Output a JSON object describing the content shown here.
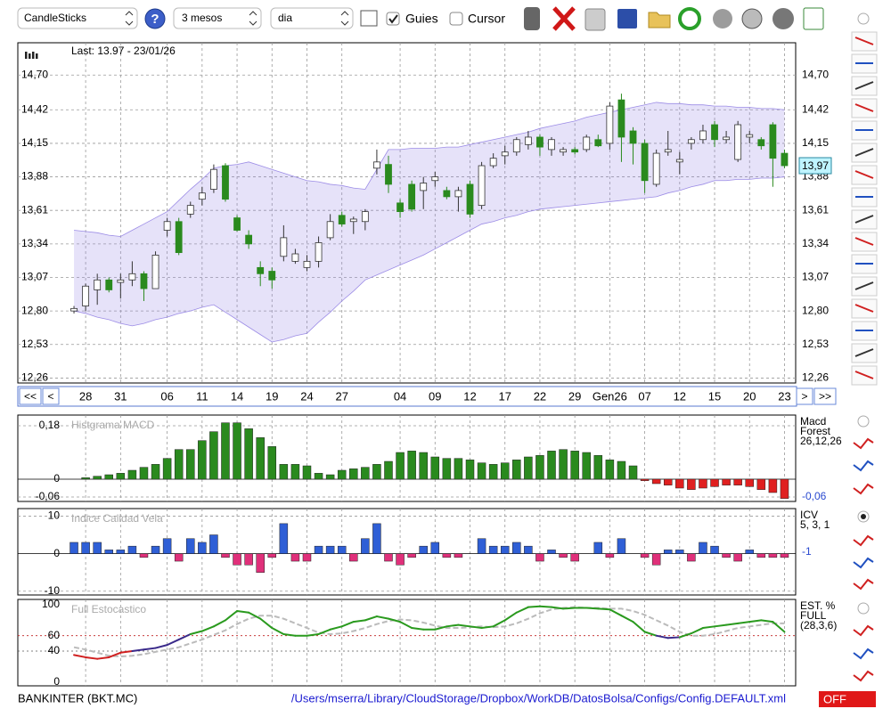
{
  "toolbar": {
    "chart_type": "CandleSticks",
    "period": "3 mesos",
    "interval": "dia",
    "guides": "Guies",
    "cursor": "Cursor",
    "guides_checked": true,
    "cursor_checked": false
  },
  "navigation": {
    "first": "<<",
    "prev": "<",
    "next": ">",
    "last": ">>"
  },
  "status": {
    "symbol": "BANKINTER (BKT.MC)",
    "config_path": "/Users/mserra/Library/CloudStorage/Dropbox/WorkDB/DatosBolsa/Configs/Config.DEFAULT.xml",
    "mode": "OFF"
  },
  "chart_data": [
    {
      "type": "candlestick",
      "annotation": "Last: 13.97 - 23/01/26",
      "last_value": 13.97,
      "last_value_label": "13,97",
      "up_color": "#ffffff",
      "down_color": "#2a8a1e",
      "band_color": "#9c8ce6",
      "categories": [
        null,
        "28",
        null,
        null,
        "31",
        null,
        null,
        null,
        "06",
        null,
        null,
        "11",
        null,
        null,
        "14",
        null,
        null,
        "19",
        null,
        null,
        "24",
        null,
        null,
        "27",
        null,
        null,
        null,
        null,
        "04",
        null,
        null,
        "09",
        null,
        null,
        "12",
        null,
        null,
        "17",
        null,
        null,
        "22",
        null,
        null,
        "29",
        null,
        null,
        "Gen26",
        null,
        null,
        "07",
        null,
        null,
        "12",
        null,
        null,
        "15",
        null,
        null,
        "20",
        null,
        null,
        "23"
      ],
      "open": [
        12.8,
        12.84,
        12.97,
        13.05,
        13.03,
        13.05,
        13.1,
        12.98,
        13.45,
        13.52,
        13.58,
        13.7,
        13.78,
        13.97,
        13.55,
        13.41,
        13.15,
        13.12,
        13.24,
        13.2,
        13.15,
        13.2,
        13.39,
        13.57,
        13.52,
        13.52,
        13.95,
        13.98,
        13.67,
        13.82,
        13.77,
        13.85,
        13.77,
        13.72,
        13.82,
        13.65,
        13.97,
        14.05,
        14.08,
        14.14,
        14.2,
        14.1,
        14.08,
        14.1,
        14.1,
        14.18,
        14.15,
        14.5,
        14.25,
        14.15,
        13.82,
        14.08,
        14.0,
        14.15,
        14.18,
        14.3,
        14.18,
        14.02,
        14.2,
        14.18,
        14.3,
        14.07
      ],
      "high": [
        12.84,
        13.02,
        13.1,
        13.07,
        13.1,
        13.2,
        13.12,
        13.28,
        13.55,
        13.55,
        13.68,
        13.8,
        13.98,
        13.99,
        13.57,
        13.45,
        13.2,
        13.15,
        13.49,
        13.3,
        13.25,
        13.4,
        13.58,
        13.6,
        13.56,
        13.62,
        14.1,
        14.05,
        13.7,
        13.85,
        13.88,
        13.92,
        13.8,
        13.8,
        13.85,
        14.0,
        14.07,
        14.13,
        14.2,
        14.25,
        14.22,
        14.2,
        14.12,
        14.12,
        14.22,
        14.22,
        14.48,
        14.55,
        14.28,
        14.18,
        14.1,
        14.25,
        14.08,
        14.2,
        14.3,
        14.33,
        14.25,
        14.33,
        14.25,
        14.2,
        14.32,
        14.1
      ],
      "low": [
        12.78,
        12.8,
        12.85,
        12.95,
        12.9,
        13.0,
        12.88,
        12.98,
        13.4,
        13.25,
        13.55,
        13.65,
        13.75,
        13.68,
        13.44,
        13.3,
        13.0,
        12.98,
        13.2,
        13.18,
        13.12,
        13.15,
        13.37,
        13.48,
        13.42,
        13.45,
        13.9,
        13.75,
        13.55,
        13.6,
        13.62,
        13.8,
        13.7,
        13.6,
        13.55,
        13.62,
        13.95,
        13.98,
        14.05,
        14.1,
        14.05,
        14.05,
        14.05,
        14.06,
        14.08,
        14.12,
        14.1,
        14.0,
        13.98,
        13.75,
        13.8,
        14.05,
        13.9,
        14.1,
        14.15,
        14.12,
        14.15,
        14.0,
        14.15,
        14.1,
        13.8,
        13.95
      ],
      "close": [
        12.82,
        13.0,
        13.05,
        12.97,
        13.05,
        13.1,
        12.98,
        13.25,
        13.52,
        13.27,
        13.65,
        13.75,
        13.94,
        13.7,
        13.45,
        13.34,
        13.1,
        13.05,
        13.39,
        13.26,
        13.2,
        13.35,
        13.52,
        13.5,
        13.54,
        13.6,
        14.0,
        13.82,
        13.6,
        13.62,
        13.83,
        13.88,
        13.72,
        13.77,
        13.58,
        13.97,
        14.03,
        14.08,
        14.18,
        14.2,
        14.12,
        14.18,
        14.1,
        14.08,
        14.2,
        14.13,
        14.45,
        14.2,
        14.15,
        13.85,
        14.07,
        14.1,
        14.02,
        14.18,
        14.25,
        14.18,
        14.2,
        14.3,
        14.22,
        14.13,
        14.03,
        13.97
      ],
      "band_upper": [
        13.45,
        13.44,
        13.43,
        13.41,
        13.4,
        13.45,
        13.5,
        13.55,
        13.6,
        13.69,
        13.78,
        13.86,
        13.95,
        13.97,
        13.98,
        14.0,
        13.97,
        13.94,
        13.91,
        13.88,
        13.85,
        13.84,
        13.82,
        13.81,
        13.79,
        13.78,
        13.94,
        14.1,
        14.1,
        14.11,
        14.11,
        14.11,
        14.12,
        14.12,
        14.14,
        14.16,
        14.18,
        14.2,
        14.22,
        14.24,
        14.27,
        14.29,
        14.31,
        14.33,
        14.36,
        14.38,
        14.4,
        14.42,
        14.44,
        14.46,
        14.48,
        14.47,
        14.47,
        14.46,
        14.46,
        14.45,
        14.45,
        14.44,
        14.44,
        14.43,
        14.43,
        14.42
      ],
      "band_lower": [
        12.8,
        12.78,
        12.75,
        12.73,
        12.7,
        12.68,
        12.7,
        12.73,
        12.75,
        12.78,
        12.8,
        12.83,
        12.85,
        12.79,
        12.73,
        12.67,
        12.61,
        12.55,
        12.57,
        12.6,
        12.62,
        12.71,
        12.79,
        12.88,
        12.96,
        13.05,
        13.09,
        13.13,
        13.17,
        13.21,
        13.25,
        13.3,
        13.35,
        13.4,
        13.45,
        13.5,
        13.52,
        13.55,
        13.57,
        13.6,
        13.62,
        13.63,
        13.64,
        13.65,
        13.66,
        13.67,
        13.68,
        13.69,
        13.7,
        13.71,
        13.72,
        13.75,
        13.77,
        13.8,
        13.82,
        13.85,
        13.85,
        13.86,
        13.86,
        13.87,
        13.87,
        13.88
      ],
      "ylim": [
        12.22,
        14.96
      ],
      "yticks": [
        {
          "value": 12.26,
          "label": "12,26"
        },
        {
          "value": 12.53,
          "label": "12,53"
        },
        {
          "value": 12.8,
          "label": "12,80"
        },
        {
          "value": 13.07,
          "label": "13,07"
        },
        {
          "value": 13.34,
          "label": "13,34"
        },
        {
          "value": 13.61,
          "label": "13,61"
        },
        {
          "value": 13.88,
          "label": "13,88"
        },
        {
          "value": 14.15,
          "label": "14,15"
        },
        {
          "value": 14.42,
          "label": "14,42"
        },
        {
          "value": 14.7,
          "label": "14,70"
        }
      ],
      "grid": true
    },
    {
      "type": "bar",
      "title": "Histgrama MACD",
      "legend_lines": [
        "Macd",
        "Forest",
        "26,12,26"
      ],
      "current_label": "-0,06",
      "positive_color": "#2a8a1e",
      "negative_color": "#e02020",
      "values": [
        0,
        0.005,
        0.01,
        0.015,
        0.02,
        0.03,
        0.04,
        0.05,
        0.07,
        0.1,
        0.1,
        0.13,
        0.16,
        0.19,
        0.19,
        0.17,
        0.14,
        0.11,
        0.05,
        0.05,
        0.045,
        0.02,
        0.015,
        0.03,
        0.035,
        0.04,
        0.05,
        0.06,
        0.09,
        0.095,
        0.09,
        0.075,
        0.07,
        0.07,
        0.065,
        0.055,
        0.05,
        0.055,
        0.065,
        0.075,
        0.08,
        0.095,
        0.1,
        0.095,
        0.09,
        0.08,
        0.065,
        0.06,
        0.045,
        -0.005,
        -0.015,
        -0.02,
        -0.03,
        -0.035,
        -0.03,
        -0.025,
        -0.02,
        -0.02,
        -0.025,
        -0.035,
        -0.045,
        -0.065
      ],
      "ylim": [
        -0.075,
        0.216
      ],
      "yticks": [
        {
          "value": -0.06,
          "label": "-0,06"
        },
        0,
        {
          "value": 0.18,
          "label": "0,18"
        }
      ],
      "grid": true
    },
    {
      "type": "bar",
      "title": "Indice Calidad Vela",
      "legend_lines": [
        "ICV",
        "5, 3, 1"
      ],
      "current_label": "-1",
      "positive_color": "#2f5fd6",
      "negative_color": "#e0307a",
      "values": [
        3,
        3,
        3,
        1,
        1,
        2,
        -1,
        2,
        4,
        -2,
        4,
        3,
        5,
        -1,
        -3,
        -3,
        -5,
        -1,
        8,
        -2,
        -2,
        2,
        2,
        2,
        -2,
        4,
        8,
        -2,
        -3,
        -1,
        2,
        3,
        -1,
        -1,
        0,
        4,
        2,
        2,
        3,
        2,
        -2,
        1,
        -1,
        -2,
        0,
        3,
        -1,
        4,
        0,
        -1,
        -3,
        1,
        1,
        -2,
        3,
        2,
        -1,
        -2,
        1,
        -1,
        -1,
        -1
      ],
      "ylim": [
        -11,
        12
      ],
      "yticks": [
        -10,
        0,
        10
      ],
      "grid": true
    },
    {
      "type": "line",
      "title": "Full Estocastico",
      "legend_lines": [
        "EST. %",
        "FULL",
        "(28,3,6)"
      ],
      "series": [
        {
          "name": "%K",
          "color": "#2a9a1e",
          "low_color": "#d02020",
          "mid_color": "#3a2a8a",
          "values": [
            35,
            32,
            30,
            32,
            38,
            40,
            42,
            44,
            48,
            55,
            62,
            66,
            72,
            80,
            92,
            90,
            82,
            70,
            62,
            60,
            60,
            62,
            68,
            72,
            78,
            80,
            85,
            82,
            78,
            70,
            68,
            68,
            72,
            74,
            72,
            70,
            72,
            80,
            90,
            97,
            98,
            97,
            95,
            96,
            96,
            95,
            94,
            86,
            78,
            65,
            60,
            57,
            58,
            63,
            70,
            72,
            74,
            76,
            78,
            80,
            78,
            65
          ]
        },
        {
          "name": "%D",
          "color": "#bbbbbb",
          "values": [
            45,
            42,
            38,
            34,
            33,
            34,
            36,
            39,
            42,
            45,
            50,
            55,
            61,
            67,
            75,
            82,
            86,
            86,
            82,
            76,
            70,
            64,
            62,
            63,
            66,
            70,
            75,
            79,
            81,
            80,
            77,
            73,
            70,
            70,
            71,
            72,
            71,
            72,
            76,
            82,
            89,
            94,
            96,
            97,
            96,
            96,
            95,
            95,
            92,
            87,
            80,
            73,
            65,
            60,
            60,
            62,
            66,
            70,
            72,
            74,
            76,
            76
          ]
        }
      ],
      "ylim": [
        -5,
        107
      ],
      "yticks": [
        0,
        40,
        60,
        100
      ],
      "grid": true
    }
  ]
}
